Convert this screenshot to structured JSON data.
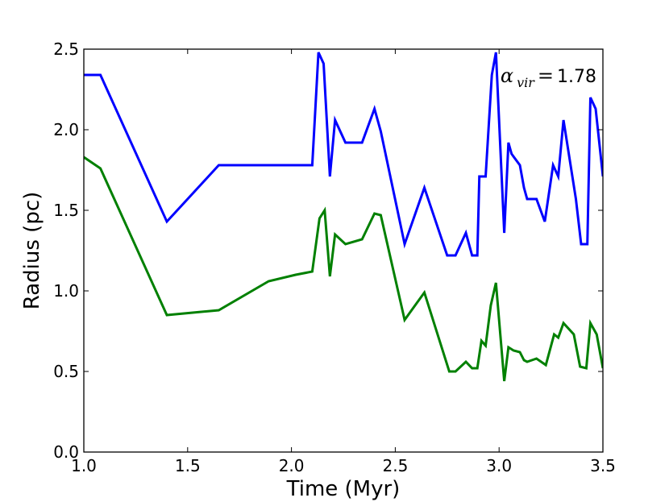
{
  "chart_data": {
    "type": "line",
    "title": "",
    "xlabel": "Time (Myr)",
    "ylabel": "Radius (pc)",
    "xlim": [
      1.0,
      3.5
    ],
    "ylim": [
      0.0,
      2.5
    ],
    "xticks": [
      "1.0",
      "1.5",
      "2.0",
      "2.5",
      "3.0",
      "3.5"
    ],
    "yticks": [
      "0.0",
      "0.5",
      "1.0",
      "1.5",
      "2.0",
      "2.5"
    ],
    "grid": false,
    "annotation": {
      "symbol": "α",
      "subscript": "vir",
      "equals": "=",
      "value": "1.78"
    },
    "series": [
      {
        "color": "#0000ff",
        "points": [
          [
            1.0,
            2.34
          ],
          [
            1.08,
            2.34
          ],
          [
            1.4,
            1.43
          ],
          [
            1.65,
            1.78
          ],
          [
            2.1,
            1.78
          ],
          [
            2.13,
            2.48
          ],
          [
            2.155,
            2.41
          ],
          [
            2.185,
            1.71
          ],
          [
            2.21,
            2.06
          ],
          [
            2.26,
            1.92
          ],
          [
            2.34,
            1.92
          ],
          [
            2.4,
            2.13
          ],
          [
            2.43,
            1.99
          ],
          [
            2.545,
            1.29
          ],
          [
            2.64,
            1.64
          ],
          [
            2.75,
            1.22
          ],
          [
            2.79,
            1.22
          ],
          [
            2.84,
            1.36
          ],
          [
            2.87,
            1.22
          ],
          [
            2.895,
            1.22
          ],
          [
            2.905,
            1.71
          ],
          [
            2.935,
            1.71
          ],
          [
            2.965,
            2.34
          ],
          [
            2.985,
            2.48
          ],
          [
            3.025,
            1.36
          ],
          [
            3.045,
            1.92
          ],
          [
            3.06,
            1.85
          ],
          [
            3.1,
            1.78
          ],
          [
            3.12,
            1.64
          ],
          [
            3.135,
            1.57
          ],
          [
            3.18,
            1.57
          ],
          [
            3.22,
            1.43
          ],
          [
            3.26,
            1.78
          ],
          [
            3.285,
            1.71
          ],
          [
            3.31,
            2.06
          ],
          [
            3.37,
            1.57
          ],
          [
            3.395,
            1.29
          ],
          [
            3.425,
            1.29
          ],
          [
            3.44,
            2.2
          ],
          [
            3.465,
            2.13
          ],
          [
            3.5,
            1.71
          ]
        ]
      },
      {
        "color": "#008000",
        "points": [
          [
            1.0,
            1.83
          ],
          [
            1.08,
            1.76
          ],
          [
            1.4,
            0.85
          ],
          [
            1.65,
            0.88
          ],
          [
            1.89,
            1.06
          ],
          [
            2.02,
            1.1
          ],
          [
            2.1,
            1.12
          ],
          [
            2.135,
            1.45
          ],
          [
            2.16,
            1.5
          ],
          [
            2.185,
            1.09
          ],
          [
            2.21,
            1.35
          ],
          [
            2.26,
            1.29
          ],
          [
            2.34,
            1.32
          ],
          [
            2.4,
            1.48
          ],
          [
            2.43,
            1.47
          ],
          [
            2.545,
            0.82
          ],
          [
            2.64,
            0.99
          ],
          [
            2.76,
            0.5
          ],
          [
            2.79,
            0.5
          ],
          [
            2.84,
            0.56
          ],
          [
            2.87,
            0.52
          ],
          [
            2.895,
            0.52
          ],
          [
            2.915,
            0.69
          ],
          [
            2.935,
            0.66
          ],
          [
            2.96,
            0.91
          ],
          [
            2.985,
            1.05
          ],
          [
            3.025,
            0.44
          ],
          [
            3.045,
            0.65
          ],
          [
            3.07,
            0.63
          ],
          [
            3.1,
            0.62
          ],
          [
            3.12,
            0.57
          ],
          [
            3.135,
            0.56
          ],
          [
            3.18,
            0.58
          ],
          [
            3.225,
            0.54
          ],
          [
            3.265,
            0.73
          ],
          [
            3.285,
            0.71
          ],
          [
            3.31,
            0.8
          ],
          [
            3.36,
            0.73
          ],
          [
            3.39,
            0.53
          ],
          [
            3.42,
            0.52
          ],
          [
            3.44,
            0.8
          ],
          [
            3.47,
            0.73
          ],
          [
            3.5,
            0.52
          ]
        ]
      }
    ]
  }
}
